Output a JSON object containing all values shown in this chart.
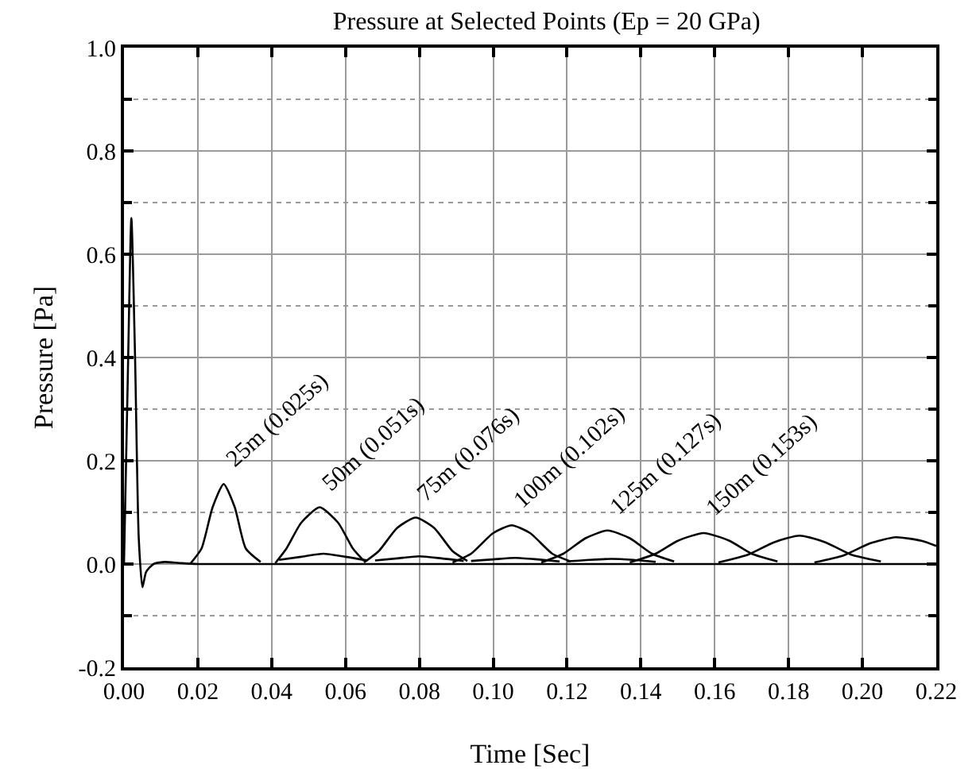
{
  "chart_data": {
    "type": "line",
    "title": "Pressure at Selected Points (Ep = 20 GPa)",
    "xlabel": "Time [Sec]",
    "ylabel": "Pressure [Pa]",
    "xlim": [
      0,
      0.22
    ],
    "ylim": [
      -0.2,
      1.0
    ],
    "xticks": [
      {
        "value": 0,
        "label": "0.00"
      },
      {
        "value": 0.02,
        "label": "0.02"
      },
      {
        "value": 0.04,
        "label": "0.04"
      },
      {
        "value": 0.06,
        "label": "0.06"
      },
      {
        "value": 0.08,
        "label": "0.08"
      },
      {
        "value": 0.1,
        "label": "0.10"
      },
      {
        "value": 0.12,
        "label": "0.12"
      },
      {
        "value": 0.14,
        "label": "0.14"
      },
      {
        "value": 0.16,
        "label": "0.16"
      },
      {
        "value": 0.18,
        "label": "0.18"
      },
      {
        "value": 0.2,
        "label": "0.20"
      },
      {
        "value": 0.22,
        "label": "0.22"
      }
    ],
    "yticks": [
      -0.2,
      {
        "value": -0.1,
        "label": null
      },
      {
        "value": 0,
        "label": "0.0"
      },
      {
        "value": 0.1,
        "label": null
      },
      0.2,
      {
        "value": 0.3,
        "label": null
      },
      0.4,
      {
        "value": 0.5,
        "label": null
      },
      0.6,
      {
        "value": 0.7,
        "label": null
      },
      0.8,
      {
        "value": 0.9,
        "label": null
      },
      {
        "value": 1,
        "label": "1.0"
      }
    ],
    "grid": true,
    "marker": "none",
    "line_style": "solid",
    "series": [
      {
        "color": "#000000",
        "x": [
          0,
          0.001,
          0.002,
          0.003,
          0.004,
          0.005,
          0.006,
          0.008,
          0.011,
          0.015,
          0.02,
          0.22
        ],
        "values": [
          0,
          0.35,
          0.67,
          0.4,
          0.05,
          -0.045,
          -0.015,
          0,
          0.004,
          0.002,
          0,
          0
        ]
      },
      {
        "color": "#000000",
        "x": [
          0.018,
          0.021,
          0.024,
          0.027,
          0.03,
          0.033,
          0.037
        ],
        "values": [
          0.001,
          0.03,
          0.11,
          0.155,
          0.11,
          0.03,
          0.004
        ]
      },
      {
        "color": "#000000",
        "x": [
          0.041,
          0.044,
          0.048,
          0.053,
          0.058,
          0.062,
          0.065
        ],
        "values": [
          0.002,
          0.03,
          0.08,
          0.11,
          0.08,
          0.03,
          0.006
        ]
      },
      {
        "color": "#000000",
        "x": [
          0.065,
          0.069,
          0.074,
          0.079,
          0.084,
          0.089,
          0.093
        ],
        "values": [
          0.003,
          0.025,
          0.07,
          0.09,
          0.07,
          0.025,
          0.006
        ]
      },
      {
        "color": "#000000",
        "x": [
          0.089,
          0.094,
          0.1,
          0.105,
          0.11,
          0.116,
          0.121
        ],
        "values": [
          0.003,
          0.02,
          0.06,
          0.075,
          0.06,
          0.02,
          0.005
        ]
      },
      {
        "color": "#000000",
        "x": [
          0.113,
          0.119,
          0.125,
          0.131,
          0.137,
          0.143,
          0.149
        ],
        "values": [
          0.003,
          0.02,
          0.05,
          0.065,
          0.05,
          0.02,
          0.005
        ]
      },
      {
        "color": "#000000",
        "x": [
          0.137,
          0.144,
          0.15,
          0.157,
          0.164,
          0.17,
          0.177
        ],
        "values": [
          0.003,
          0.02,
          0.045,
          0.06,
          0.045,
          0.02,
          0.005
        ]
      },
      {
        "color": "#000000",
        "x": [
          0.161,
          0.169,
          0.176,
          0.183,
          0.19,
          0.197,
          0.205
        ],
        "values": [
          0.003,
          0.018,
          0.042,
          0.055,
          0.042,
          0.018,
          0.005
        ]
      },
      {
        "color": "#000000",
        "x": [
          0.187,
          0.195,
          0.202,
          0.209,
          0.216,
          0.22
        ],
        "values": [
          0.003,
          0.017,
          0.04,
          0.052,
          0.045,
          0.035
        ]
      },
      {
        "color": "#000000",
        "x": [
          0.042,
          0.048,
          0.054,
          0.06,
          0.066
        ],
        "values": [
          0.008,
          0.014,
          0.02,
          0.014,
          0.007
        ]
      },
      {
        "color": "#000000",
        "x": [
          0.068,
          0.074,
          0.08,
          0.086,
          0.092
        ],
        "values": [
          0.007,
          0.011,
          0.015,
          0.011,
          0.006
        ]
      },
      {
        "color": "#000000",
        "x": [
          0.094,
          0.1,
          0.106,
          0.112,
          0.118
        ],
        "values": [
          0.006,
          0.009,
          0.012,
          0.009,
          0.005
        ]
      },
      {
        "color": "#000000",
        "x": [
          0.12,
          0.126,
          0.132,
          0.138,
          0.144
        ],
        "values": [
          0.005,
          0.008,
          0.01,
          0.008,
          0.004
        ]
      }
    ],
    "annotations": [
      {
        "text": "25m (0.025s)",
        "x": 0.027,
        "y": 0.155
      },
      {
        "text": "50m (0.051s)",
        "x": 0.053,
        "y": 0.11
      },
      {
        "text": "75m (0.076s)",
        "x": 0.079,
        "y": 0.09
      },
      {
        "text": "100m (0.102s)",
        "x": 0.105,
        "y": 0.075
      },
      {
        "text": "125m (0.127s)",
        "x": 0.131,
        "y": 0.065
      },
      {
        "text": "150m (0.153s)",
        "x": 0.157,
        "y": 0.06
      }
    ]
  }
}
